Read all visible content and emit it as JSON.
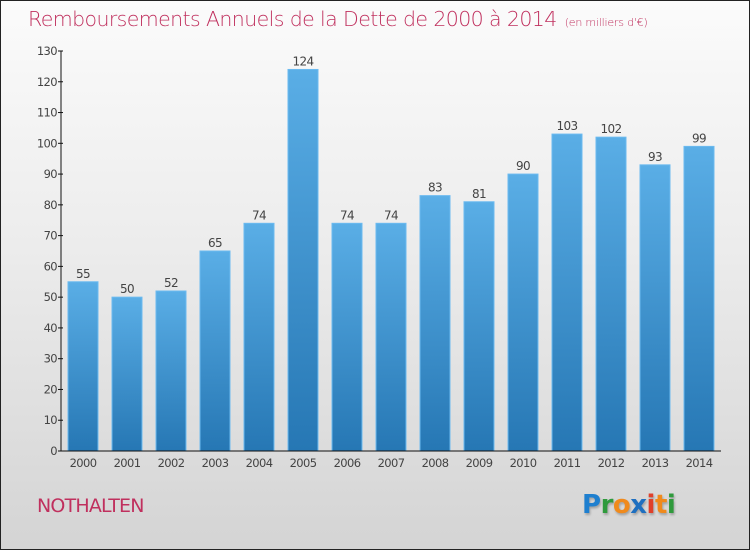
{
  "header": {
    "title": "Remboursements Annuels de la Dette de 2000 à 2014",
    "unit": "(en milliers d'€)"
  },
  "footer": {
    "city": "NOTHALTEN",
    "logo": {
      "letters": [
        {
          "char": "P",
          "color": "#1e7fcf"
        },
        {
          "char": "r",
          "color": "#2f9a3c"
        },
        {
          "char": "o",
          "color": "#f08a1c"
        },
        {
          "char": "x",
          "color": "#1e6fc0"
        },
        {
          "char": "i",
          "color": "#e0402a"
        },
        {
          "char": "t",
          "color": "#f08a1c"
        },
        {
          "char": "i",
          "color": "#2f9a3c"
        }
      ]
    }
  },
  "colors": {
    "bar_top": "#5aaee6",
    "bar_bottom": "#2677b4",
    "bar_edge": "#6bbaf0",
    "title": "#c0305e"
  },
  "chart_data": {
    "type": "bar",
    "title": "Remboursements Annuels de la Dette de 2000 à 2014",
    "subtitle": "(en milliers d'€)",
    "xlabel": "",
    "ylabel": "",
    "categories": [
      "2000",
      "2001",
      "2002",
      "2003",
      "2004",
      "2005",
      "2006",
      "2007",
      "2008",
      "2009",
      "2010",
      "2011",
      "2012",
      "2013",
      "2014"
    ],
    "values": [
      55,
      50,
      52,
      65,
      74,
      124,
      74,
      74,
      83,
      81,
      90,
      103,
      102,
      93,
      99
    ],
    "ylim": [
      0,
      130
    ],
    "yticks": [
      0,
      10,
      20,
      30,
      40,
      50,
      60,
      70,
      80,
      90,
      100,
      110,
      120,
      130
    ],
    "grid": false,
    "legend": "none",
    "data_labels": true
  }
}
